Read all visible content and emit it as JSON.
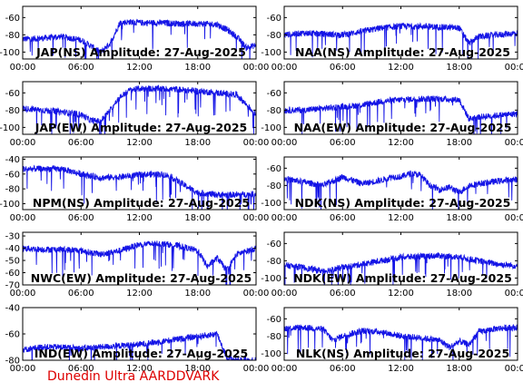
{
  "footer": "Dunedin Ultra AARDDVARK",
  "colors": {
    "trace": "#1414e6",
    "axes": "#000000",
    "title": "#000000",
    "footer": "#dd0000"
  },
  "x_tick_labels": [
    "00:00",
    "06:00",
    "12:00",
    "18:00",
    "00:00"
  ],
  "chart_data": [
    {
      "type": "line",
      "title": "JAP(NS) Amplitude: 27-Aug-2025",
      "xlim": [
        0,
        24
      ],
      "ylim": [
        -108,
        -47
      ],
      "yticks": [
        -100,
        -80,
        -60
      ],
      "series": [
        {
          "x": [
            0,
            2,
            4,
            6,
            8,
            9,
            10,
            11,
            12,
            14,
            16,
            18,
            20,
            21,
            22,
            23,
            24
          ],
          "values": [
            -85,
            -84,
            -82,
            -86,
            -100,
            -90,
            -66,
            -65,
            -66,
            -66,
            -67,
            -67,
            -68,
            -74,
            -82,
            -95,
            -92
          ]
        }
      ]
    },
    {
      "type": "line",
      "title": "NAA(NS) Amplitude: 27-Aug-2025",
      "xlim": [
        0,
        24
      ],
      "ylim": [
        -108,
        -47
      ],
      "yticks": [
        -100,
        -80,
        -60
      ],
      "series": [
        {
          "x": [
            0,
            2,
            4,
            6,
            8,
            10,
            12,
            14,
            16,
            18,
            19,
            20,
            22,
            24
          ],
          "values": [
            -80,
            -78,
            -79,
            -80,
            -76,
            -72,
            -70,
            -70,
            -71,
            -72,
            -90,
            -82,
            -80,
            -78
          ]
        }
      ]
    },
    {
      "type": "line",
      "title": "JAP(EW) Amplitude: 27-Aug-2025",
      "xlim": [
        0,
        24
      ],
      "ylim": [
        -108,
        -47
      ],
      "yticks": [
        -100,
        -80,
        -60
      ],
      "series": [
        {
          "x": [
            0,
            2,
            4,
            6,
            7,
            8,
            9,
            10,
            11,
            12,
            14,
            16,
            18,
            20,
            22,
            24
          ],
          "values": [
            -78,
            -80,
            -82,
            -85,
            -92,
            -93,
            -80,
            -65,
            -57,
            -55,
            -55,
            -56,
            -58,
            -60,
            -62,
            -85
          ]
        }
      ]
    },
    {
      "type": "line",
      "title": "NAA(EW) Amplitude: 27-Aug-2025",
      "xlim": [
        0,
        24
      ],
      "ylim": [
        -108,
        -47
      ],
      "yticks": [
        -100,
        -80,
        -60
      ],
      "series": [
        {
          "x": [
            0,
            2,
            4,
            6,
            8,
            10,
            12,
            14,
            16,
            18,
            19,
            20,
            22,
            24
          ],
          "values": [
            -80,
            -80,
            -78,
            -76,
            -74,
            -70,
            -68,
            -67,
            -67,
            -68,
            -90,
            -88,
            -86,
            -84
          ]
        }
      ]
    },
    {
      "type": "line",
      "title": "NPM(NS) Amplitude: 27-Aug-2025",
      "xlim": [
        0,
        24
      ],
      "ylim": [
        -108,
        -37
      ],
      "yticks": [
        -100,
        -80,
        -60,
        -40
      ],
      "series": [
        {
          "x": [
            0,
            2,
            4,
            6,
            8,
            10,
            12,
            14,
            15,
            16,
            17,
            18,
            20,
            22,
            24
          ],
          "values": [
            -53,
            -53,
            -53,
            -60,
            -65,
            -64,
            -61,
            -60,
            -62,
            -70,
            -78,
            -85,
            -88,
            -88,
            -87
          ]
        }
      ]
    },
    {
      "type": "line",
      "title": "NDK(NS) Amplitude: 27-Aug-2025",
      "xlim": [
        0,
        24
      ],
      "ylim": [
        -108,
        -47
      ],
      "yticks": [
        -100,
        -80,
        -60
      ],
      "series": [
        {
          "x": [
            0,
            2,
            4,
            6,
            8,
            10,
            11,
            12,
            13,
            14,
            15,
            16,
            17,
            18,
            19,
            20,
            22,
            24
          ],
          "values": [
            -72,
            -76,
            -80,
            -70,
            -78,
            -74,
            -70,
            -70,
            -66,
            -68,
            -80,
            -85,
            -82,
            -88,
            -80,
            -78,
            -75,
            -73
          ]
        }
      ]
    },
    {
      "type": "line",
      "title": "NWC(EW) Amplitude: 27-Aug-2025",
      "xlim": [
        0,
        24
      ],
      "ylim": [
        -70,
        -27
      ],
      "yticks": [
        -70,
        -60,
        -50,
        -40,
        -30
      ],
      "series": [
        {
          "x": [
            0,
            2,
            4,
            6,
            8,
            10,
            12,
            14,
            16,
            18,
            19,
            20,
            21,
            22,
            24
          ],
          "values": [
            -40,
            -41,
            -41,
            -42,
            -45,
            -42,
            -37,
            -36,
            -38,
            -42,
            -55,
            -48,
            -58,
            -45,
            -40
          ]
        }
      ]
    },
    {
      "type": "line",
      "title": "NDK(EW) Amplitude: 27-Aug-2025",
      "xlim": [
        0,
        24
      ],
      "ylim": [
        -108,
        -47
      ],
      "yticks": [
        -100,
        -80,
        -60
      ],
      "series": [
        {
          "x": [
            0,
            2,
            4,
            6,
            8,
            10,
            12,
            14,
            16,
            18,
            20,
            22,
            24
          ],
          "values": [
            -85,
            -88,
            -92,
            -88,
            -84,
            -80,
            -76,
            -75,
            -74,
            -76,
            -80,
            -84,
            -86
          ]
        }
      ]
    },
    {
      "type": "line",
      "title": "IND(EW) Amplitude: 27-Aug-2025",
      "xlim": [
        0,
        24
      ],
      "ylim": [
        -80,
        -40
      ],
      "yticks": [
        -80,
        -60,
        -40
      ],
      "series": [
        {
          "x": [
            0,
            2,
            4,
            6,
            8,
            10,
            12,
            14,
            16,
            18,
            20,
            21,
            22,
            24
          ],
          "values": [
            -72,
            -70,
            -70,
            -71,
            -70,
            -69,
            -68,
            -66,
            -64,
            -62,
            -60,
            -78,
            -80,
            -80
          ]
        }
      ]
    },
    {
      "type": "line",
      "title": "NLK(NS) Amplitude: 27-Aug-2025",
      "xlim": [
        0,
        24
      ],
      "ylim": [
        -108,
        -47
      ],
      "yticks": [
        -100,
        -80,
        -60
      ],
      "series": [
        {
          "x": [
            0,
            2,
            4,
            5,
            6,
            8,
            10,
            12,
            14,
            16,
            17,
            18,
            19,
            20,
            22,
            24
          ],
          "values": [
            -71,
            -70,
            -72,
            -85,
            -80,
            -74,
            -75,
            -80,
            -82,
            -85,
            -93,
            -86,
            -90,
            -75,
            -71,
            -70
          ]
        }
      ]
    }
  ]
}
